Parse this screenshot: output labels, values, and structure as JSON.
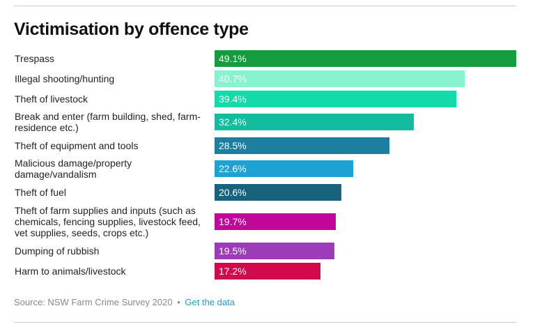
{
  "title": "Victimisation by offence type",
  "chart_data": {
    "type": "bar",
    "orientation": "horizontal",
    "title": "Victimisation by offence type",
    "xlabel": "",
    "ylabel": "",
    "xlim": [
      0,
      49.1
    ],
    "grid": false,
    "legend": "none",
    "value_suffix": "%",
    "categories": [
      "Trespass",
      "Illegal shooting/hunting",
      "Theft of livestock",
      "Break and enter (farm building, shed, farm-residence etc.)",
      "Theft of equipment and tools",
      "Malicious damage/property damage/vandalism",
      "Theft of fuel",
      "Theft of farm supplies and inputs (such as chemicals, fencing supplies, livestock feed, vet supplies, seeds, crops etc.)",
      "Dumping of rubbish",
      "Harm to animals/livestock"
    ],
    "values": [
      49.1,
      40.7,
      39.4,
      32.4,
      28.5,
      22.6,
      20.6,
      19.7,
      19.5,
      17.2
    ],
    "value_labels": [
      "49.1%",
      "40.7%",
      "39.4%",
      "32.4%",
      "28.5%",
      "22.6%",
      "20.6%",
      "19.7%",
      "19.5%",
      "17.2%"
    ],
    "colors": [
      "#149c3e",
      "#88f4cf",
      "#12dba9",
      "#12bc9c",
      "#1c7f9f",
      "#1ea2d4",
      "#17627d",
      "#c1079a",
      "#9c3cb8",
      "#d10a4c"
    ]
  },
  "source": {
    "text": "Source: NSW Farm Crime Survey 2020",
    "separator": "•",
    "link_label": "Get the data"
  }
}
